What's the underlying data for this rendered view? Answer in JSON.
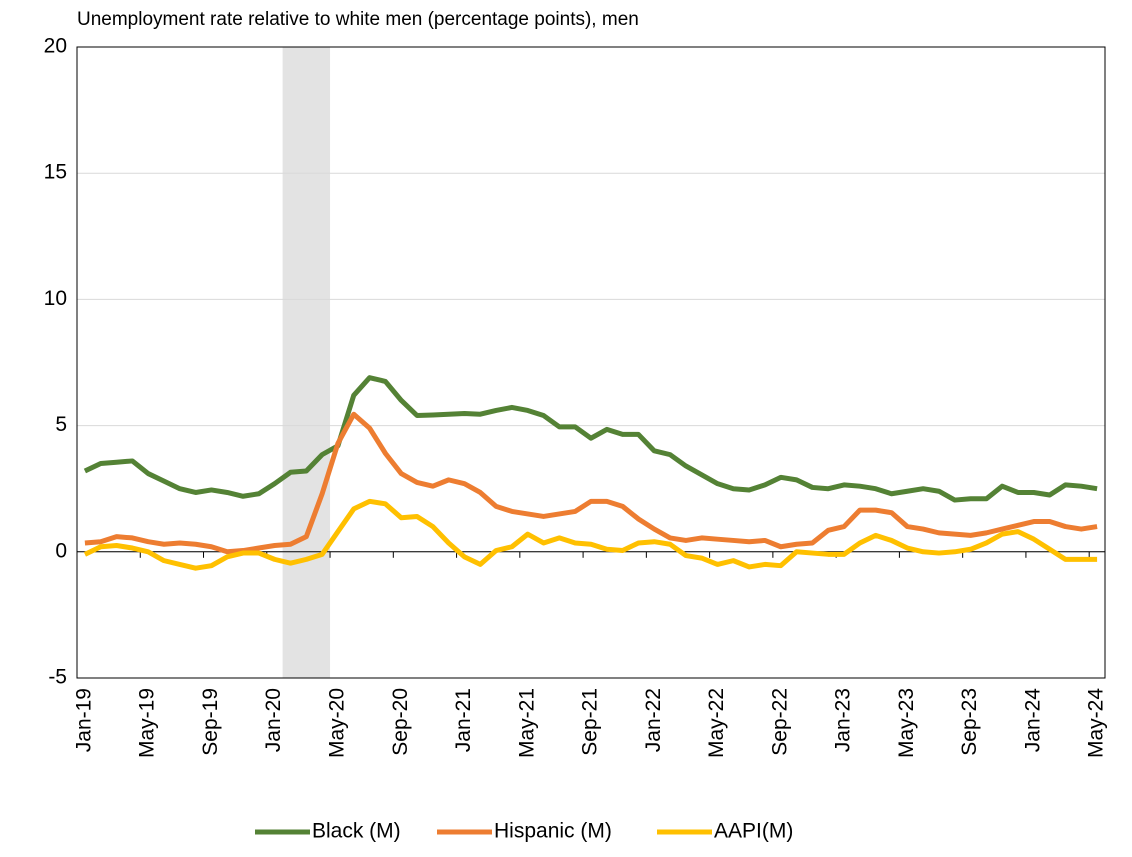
{
  "chart_data": {
    "type": "line",
    "title": "Unemployment rate relative to white men (percentage points), men",
    "categories": [
      "Jan-19",
      null,
      null,
      null,
      "May-19",
      null,
      null,
      null,
      "Sep-19",
      null,
      null,
      null,
      "Jan-20",
      null,
      null,
      null,
      "May-20",
      null,
      null,
      null,
      "Sep-20",
      null,
      null,
      null,
      "Jan-21",
      null,
      null,
      null,
      "May-21",
      null,
      null,
      null,
      "Sep-21",
      null,
      null,
      null,
      "Jan-22",
      null,
      null,
      null,
      "May-22",
      null,
      null,
      null,
      "Sep-22",
      null,
      null,
      null,
      "Jan-23",
      null,
      null,
      null,
      "May-23",
      null,
      null,
      null,
      "Sep-23",
      null,
      null,
      null,
      "Jan-24",
      null,
      null,
      null,
      "May-24"
    ],
    "series": [
      {
        "name": "Black (M)",
        "color": "#548235",
        "values": [
          3.2,
          3.5,
          3.55,
          3.6,
          3.1,
          2.8,
          2.5,
          2.35,
          2.45,
          2.35,
          2.2,
          2.3,
          2.7,
          3.15,
          3.2,
          3.85,
          4.2,
          6.2,
          6.9,
          6.75,
          6.0,
          5.4,
          5.42,
          5.45,
          5.48,
          5.45,
          5.6,
          5.72,
          5.6,
          5.4,
          4.95,
          4.95,
          4.5,
          4.85,
          4.65,
          4.65,
          4.0,
          3.85,
          3.4,
          3.05,
          2.7,
          2.5,
          2.45,
          2.65,
          2.95,
          2.85,
          2.55,
          2.5,
          2.65,
          2.6,
          2.5,
          2.3,
          2.4,
          2.5,
          2.4,
          2.05,
          2.1,
          2.1,
          2.6,
          2.35,
          2.35,
          2.25,
          2.65,
          2.6,
          2.5
        ]
      },
      {
        "name": "Hispanic (M)",
        "color": "#ed7d31",
        "values": [
          0.35,
          0.4,
          0.6,
          0.55,
          0.4,
          0.3,
          0.35,
          0.3,
          0.2,
          0.0,
          0.05,
          0.15,
          0.25,
          0.3,
          0.6,
          2.3,
          4.3,
          5.45,
          4.9,
          3.9,
          3.1,
          2.75,
          2.6,
          2.85,
          2.7,
          2.35,
          1.8,
          1.6,
          1.5,
          1.4,
          1.5,
          1.6,
          2.0,
          2.0,
          1.8,
          1.3,
          0.9,
          0.55,
          0.45,
          0.55,
          0.5,
          0.45,
          0.4,
          0.45,
          0.2,
          0.3,
          0.35,
          0.85,
          1.0,
          1.65,
          1.65,
          1.55,
          1.0,
          0.9,
          0.75,
          0.7,
          0.65,
          0.75,
          0.9,
          1.05,
          1.2,
          1.2,
          1.0,
          0.9,
          1.0
        ]
      },
      {
        "name": "AAPI(M)",
        "color": "#ffc000",
        "values": [
          -0.1,
          0.2,
          0.25,
          0.15,
          0.0,
          -0.35,
          -0.5,
          -0.65,
          -0.55,
          -0.2,
          -0.05,
          -0.05,
          -0.3,
          -0.45,
          -0.3,
          -0.1,
          0.8,
          1.7,
          2.0,
          1.9,
          1.35,
          1.4,
          1.0,
          0.35,
          -0.2,
          -0.5,
          0.05,
          0.2,
          0.7,
          0.35,
          0.55,
          0.35,
          0.3,
          0.1,
          0.05,
          0.35,
          0.4,
          0.3,
          -0.15,
          -0.25,
          -0.5,
          -0.35,
          -0.6,
          -0.5,
          -0.55,
          0.0,
          -0.05,
          -0.1,
          -0.1,
          0.35,
          0.65,
          0.45,
          0.15,
          0.0,
          -0.05,
          0.0,
          0.1,
          0.35,
          0.7,
          0.8,
          0.5,
          0.1,
          -0.3,
          -0.3,
          -0.3
        ]
      }
    ],
    "ylim": [
      -5,
      20
    ],
    "yticks": [
      -5,
      0,
      5,
      10,
      15,
      20
    ],
    "grid": true
  }
}
